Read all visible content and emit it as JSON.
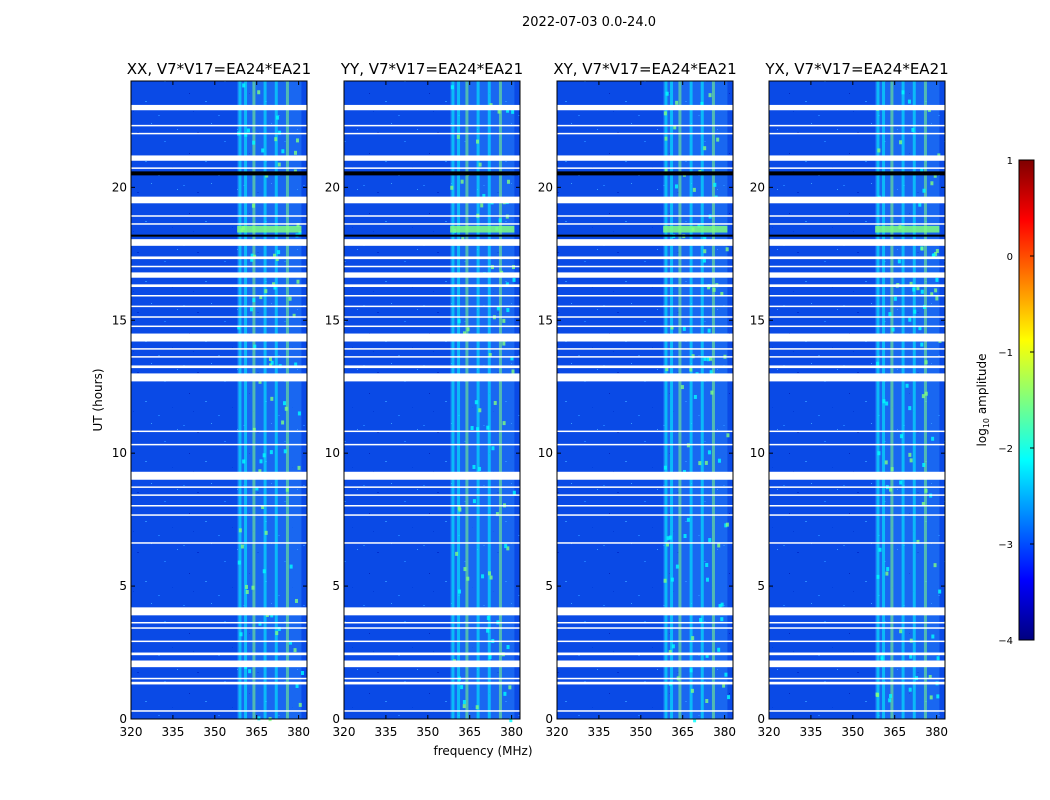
{
  "chart_data": {
    "type": "heatmap",
    "suptitle": "2022-07-03 0.0-24.0",
    "xlabel": "frequency (MHz)",
    "ylabel": "UT (hours)",
    "xlim": [
      320,
      383
    ],
    "ylim": [
      0,
      24
    ],
    "xticks": [
      320,
      335,
      350,
      365,
      380
    ],
    "yticks": [
      0,
      5,
      10,
      15,
      20
    ],
    "panels": [
      {
        "title": "XX, V7*V17=EA24*EA21"
      },
      {
        "title": "YY, V7*V17=EA24*EA21"
      },
      {
        "title": "XY, V7*V17=EA24*EA21"
      },
      {
        "title": "YX, V7*V17=EA24*EA21"
      }
    ],
    "rfi_band_mhz": [
      358,
      381
    ],
    "bright_channels_mhz": [
      359,
      361,
      364,
      368,
      372,
      376
    ],
    "flagged_hours": [
      [
        0.28,
        0.33
      ],
      [
        1.3,
        1.4
      ],
      [
        1.5,
        1.55
      ],
      [
        1.95,
        2.2
      ],
      [
        2.4,
        2.5
      ],
      [
        2.9,
        2.95
      ],
      [
        3.4,
        3.45
      ],
      [
        3.6,
        3.65
      ],
      [
        3.9,
        4.2
      ],
      [
        6.6,
        6.65
      ],
      [
        7.65,
        7.7
      ],
      [
        8.0,
        8.05
      ],
      [
        8.4,
        8.45
      ],
      [
        8.7,
        8.75
      ],
      [
        9.0,
        9.3
      ],
      [
        10.3,
        10.35
      ],
      [
        10.8,
        10.85
      ],
      [
        12.7,
        13.0
      ],
      [
        13.2,
        13.3
      ],
      [
        13.6,
        13.65
      ],
      [
        13.9,
        13.95
      ],
      [
        14.2,
        14.5
      ],
      [
        14.75,
        14.8
      ],
      [
        15.1,
        15.15
      ],
      [
        15.5,
        15.55
      ],
      [
        15.9,
        15.95
      ],
      [
        16.25,
        16.35
      ],
      [
        16.6,
        16.8
      ],
      [
        17.0,
        17.05
      ],
      [
        17.3,
        17.4
      ],
      [
        17.8,
        18.05
      ],
      [
        18.6,
        18.65
      ],
      [
        18.9,
        18.95
      ],
      [
        19.4,
        19.65
      ],
      [
        20.7,
        20.75
      ],
      [
        21.0,
        21.2
      ],
      [
        22.0,
        22.05
      ],
      [
        22.3,
        22.35
      ],
      [
        22.9,
        23.1
      ]
    ],
    "black_bands_hours": [
      [
        20.45,
        20.6
      ],
      [
        18.15,
        18.22
      ]
    ],
    "colorbar": {
      "label_prefix": "log",
      "label_sub": "10",
      "label_suffix": " amplitude",
      "range": [
        -4,
        1
      ],
      "ticks": [
        1,
        0,
        -1,
        -2,
        -3,
        -4
      ],
      "tick_labels": [
        "1",
        "0",
        "−1",
        "−2",
        "−3",
        "−4"
      ],
      "colormap": "jet",
      "colors": [
        "#00007f",
        "#0000ff",
        "#007fff",
        "#00ffff",
        "#7fff7f",
        "#ffff00",
        "#ff7f00",
        "#ff0000",
        "#7f0000"
      ]
    }
  }
}
